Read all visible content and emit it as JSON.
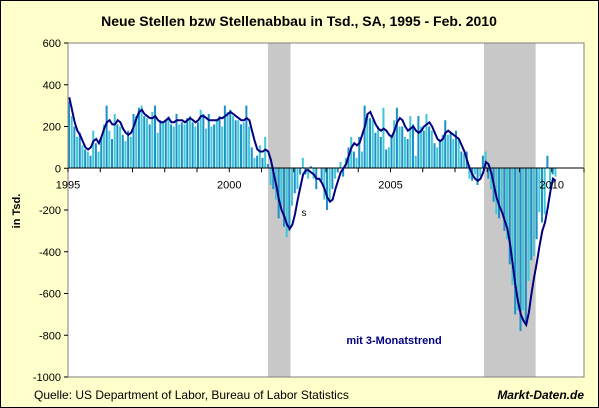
{
  "chart_data": {
    "type": "bar",
    "title": "Neue Stellen bzw Stellenabbau in Tsd., SA, 1995 - Feb. 2010",
    "ylabel": "in Tsd.",
    "xlabel": "",
    "ylim": [
      -1000,
      600
    ],
    "xlim": [
      1995,
      2011
    ],
    "yticks": [
      600,
      400,
      200,
      0,
      -200,
      -400,
      -600,
      -800,
      -1000
    ],
    "xticks": [
      1995,
      2000,
      2005,
      2010
    ],
    "grid": false,
    "recessions": [
      [
        2001.2,
        2001.9
      ],
      [
        2007.9,
        2009.5
      ]
    ],
    "trend_label": "mit 3-Monatstrend",
    "annotation": "s",
    "colors": {
      "bar": "#1e90c8",
      "bar_alt": "#40c8d8",
      "trend": "#000080",
      "recession": "#c8c8c8",
      "plot_bg": "#ffffff",
      "page_bg": "#ffffcc"
    },
    "series": [
      {
        "name": "Neue Stellen",
        "values": [
          320,
          250,
          200,
          150,
          170,
          110,
          90,
          80,
          60,
          180,
          120,
          80,
          150,
          210,
          300,
          180,
          140,
          260,
          210,
          200,
          160,
          130,
          180,
          150,
          260,
          250,
          290,
          300,
          250,
          240,
          210,
          270,
          300,
          170,
          230,
          220,
          230,
          250,
          210,
          200,
          260,
          210,
          220,
          210,
          240,
          250,
          220,
          200,
          220,
          280,
          260,
          190,
          260,
          200,
          210,
          230,
          250,
          200,
          300,
          270,
          280,
          250,
          230,
          230,
          210,
          220,
          300,
          200,
          100,
          50,
          60,
          110,
          50,
          150,
          20,
          -80,
          -100,
          -150,
          -240,
          -180,
          -280,
          -330,
          -300,
          -180,
          -120,
          -100,
          -30,
          50,
          -30,
          -50,
          10,
          -50,
          -100,
          0,
          -60,
          -150,
          -200,
          -150,
          -100,
          -50,
          -20,
          30,
          -40,
          50,
          100,
          150,
          80,
          50,
          150,
          80,
          300,
          260,
          240,
          230,
          170,
          200,
          150,
          290,
          90,
          100,
          150,
          230,
          290,
          200,
          200,
          150,
          140,
          250,
          210,
          60,
          250,
          200,
          180,
          260,
          200,
          180,
          120,
          100,
          130,
          160,
          230,
          160,
          170,
          140,
          180,
          140,
          80,
          70,
          80,
          -50,
          -60,
          -30,
          -80,
          -40,
          60,
          80,
          -50,
          -100,
          -160,
          -220,
          -240,
          -200,
          -300,
          -340,
          -460,
          -560,
          -700,
          -680,
          -780,
          -680,
          -740,
          -540,
          -440,
          -420,
          -340,
          -210,
          -260,
          -220,
          60,
          -100,
          -30,
          -40
        ]
      },
      {
        "name": "3-Monatstrend",
        "values": [
          340,
          280,
          220,
          180,
          160,
          130,
          100,
          90,
          100,
          130,
          140,
          120,
          150,
          190,
          220,
          230,
          210,
          210,
          230,
          220,
          190,
          170,
          160,
          170,
          200,
          240,
          270,
          280,
          260,
          250,
          240,
          240,
          250,
          230,
          220,
          220,
          230,
          240,
          220,
          220,
          230,
          230,
          230,
          220,
          230,
          240,
          230,
          220,
          230,
          250,
          250,
          240,
          230,
          230,
          230,
          230,
          240,
          240,
          250,
          260,
          270,
          260,
          250,
          240,
          230,
          230,
          240,
          230,
          180,
          130,
          90,
          80,
          80,
          90,
          80,
          40,
          -20,
          -80,
          -150,
          -200,
          -230,
          -270,
          -290,
          -270,
          -220,
          -150,
          -90,
          -30,
          -10,
          -10,
          -20,
          -30,
          -50,
          -50,
          -70,
          -100,
          -140,
          -160,
          -150,
          -100,
          -60,
          -20,
          0,
          20,
          60,
          100,
          120,
          110,
          120,
          160,
          200,
          260,
          270,
          240,
          210,
          190,
          180,
          190,
          180,
          160,
          150,
          180,
          220,
          240,
          230,
          200,
          180,
          190,
          200,
          180,
          170,
          180,
          200,
          210,
          220,
          200,
          170,
          140,
          130,
          140,
          170,
          180,
          170,
          160,
          150,
          140,
          110,
          80,
          40,
          0,
          -30,
          -50,
          -60,
          -50,
          -20,
          30,
          20,
          -20,
          -80,
          -140,
          -180,
          -210,
          -250,
          -290,
          -360,
          -460,
          -560,
          -640,
          -700,
          -730,
          -750,
          -690,
          -600,
          -520,
          -450,
          -370,
          -300,
          -260,
          -190,
          -110,
          -50,
          -60
        ]
      }
    ]
  },
  "footer": {
    "source": "Quelle: US Department of Labor, Bureau of Labor Statistics",
    "brand": "Markt-Daten.de"
  }
}
